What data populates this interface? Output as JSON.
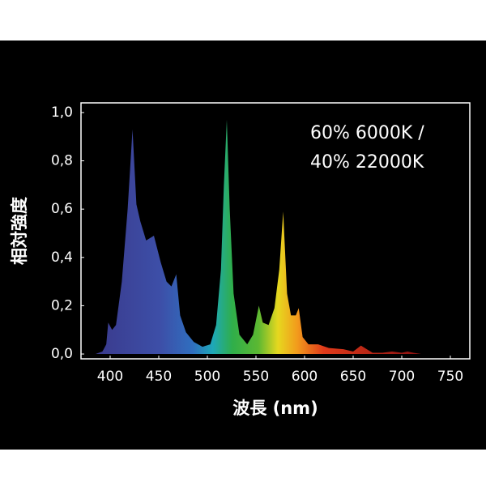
{
  "chart_data": {
    "type": "area",
    "annotation": [
      "60% 6000K /",
      "40% 22000K"
    ],
    "x_label": "波長 (nm)",
    "y_label": "相対強度",
    "xlim": [
      370,
      770
    ],
    "ylim": [
      -0.02,
      1.04
    ],
    "xticks": [
      400,
      450,
      500,
      550,
      600,
      650,
      700,
      750
    ],
    "yticks": [
      {
        "value": 0,
        "label": "0,0"
      },
      {
        "value": 0.2,
        "label": "0,2"
      },
      {
        "value": 0.4,
        "label": "0,4"
      },
      {
        "value": 0.6,
        "label": "0,6"
      },
      {
        "value": 0.8,
        "label": "0,8"
      },
      {
        "value": 1,
        "label": "1,0"
      }
    ],
    "x": [
      385,
      392,
      396,
      398,
      402,
      406,
      412,
      418,
      423,
      427,
      431,
      437,
      445,
      452,
      458,
      463,
      468,
      472,
      478,
      486,
      495,
      503,
      509,
      514,
      517,
      520,
      523,
      527,
      533,
      541,
      547,
      551,
      553,
      557,
      563,
      569,
      574,
      578,
      582,
      586,
      591,
      594,
      598,
      604,
      614,
      625,
      640,
      650,
      658,
      664,
      670,
      680,
      690,
      700,
      706,
      712,
      720
    ],
    "values": [
      0,
      0.01,
      0.04,
      0.13,
      0.1,
      0.12,
      0.3,
      0.6,
      0.93,
      0.62,
      0.55,
      0.47,
      0.49,
      0.38,
      0.3,
      0.28,
      0.33,
      0.16,
      0.09,
      0.05,
      0.03,
      0.04,
      0.12,
      0.35,
      0.7,
      0.97,
      0.6,
      0.25,
      0.08,
      0.04,
      0.08,
      0.16,
      0.2,
      0.13,
      0.12,
      0.19,
      0.35,
      0.59,
      0.25,
      0.16,
      0.16,
      0.19,
      0.07,
      0.04,
      0.04,
      0.025,
      0.02,
      0.01,
      0.035,
      0.02,
      0.005,
      0.005,
      0.01,
      0.005,
      0.01,
      0.005,
      0
    ]
  }
}
